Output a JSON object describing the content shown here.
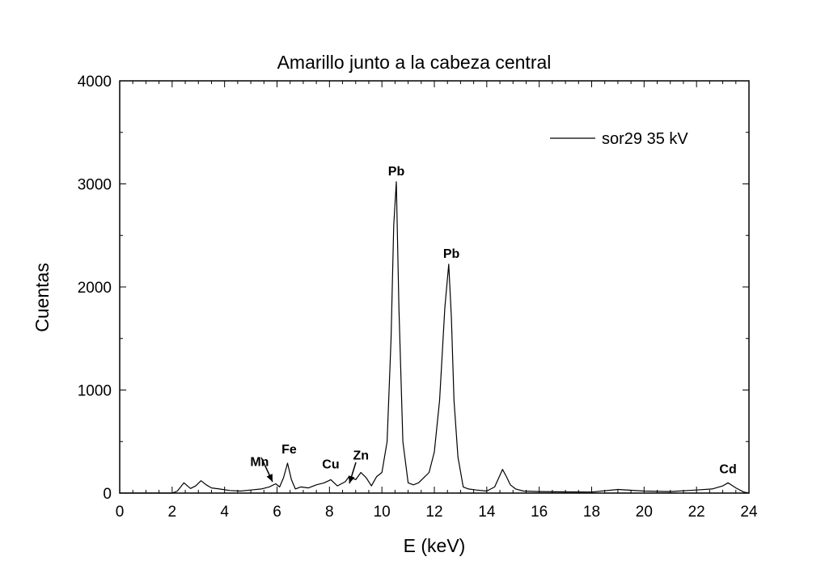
{
  "chart_data": {
    "type": "line",
    "title": "Amarillo junto a la cabeza central",
    "xlabel": "E (keV)",
    "ylabel": "Cuentas",
    "xlim": [
      0,
      24
    ],
    "ylim": [
      0,
      4000
    ],
    "x_ticks": [
      "0",
      "2",
      "4",
      "6",
      "8",
      "10",
      "12",
      "14",
      "16",
      "18",
      "20",
      "22",
      "24"
    ],
    "y_ticks": [
      "0",
      "1000",
      "2000",
      "3000",
      "4000"
    ],
    "legend": {
      "position": "top-right",
      "entries": [
        "sor29 35 kV"
      ]
    },
    "grid": false,
    "series": [
      {
        "name": "sor29 35 kV",
        "color": "#000000",
        "x": [
          0.0,
          2.0,
          2.2,
          2.45,
          2.7,
          2.9,
          3.1,
          3.3,
          3.5,
          3.8,
          4.2,
          4.6,
          5.0,
          5.4,
          5.7,
          5.95,
          6.1,
          6.25,
          6.4,
          6.55,
          6.7,
          6.9,
          7.2,
          7.5,
          7.8,
          8.05,
          8.3,
          8.6,
          8.75,
          9.0,
          9.2,
          9.4,
          9.6,
          9.8,
          10.0,
          10.2,
          10.35,
          10.45,
          10.55,
          10.65,
          10.8,
          11.0,
          11.2,
          11.4,
          11.6,
          11.8,
          12.0,
          12.2,
          12.4,
          12.55,
          12.65,
          12.75,
          12.9,
          13.1,
          13.3,
          13.6,
          14.0,
          14.3,
          14.6,
          14.75,
          14.9,
          15.1,
          15.4,
          16.0,
          17.0,
          18.0,
          19.0,
          20.0,
          21.0,
          22.0,
          22.6,
          23.0,
          23.2,
          23.5,
          23.8,
          24.0
        ],
        "y": [
          0,
          0,
          20,
          100,
          45,
          70,
          120,
          80,
          50,
          40,
          25,
          20,
          30,
          40,
          60,
          90,
          60,
          150,
          290,
          130,
          40,
          60,
          50,
          80,
          100,
          130,
          70,
          110,
          160,
          130,
          200,
          150,
          70,
          160,
          200,
          500,
          1500,
          2600,
          3020,
          1800,
          500,
          100,
          80,
          100,
          150,
          200,
          400,
          900,
          1800,
          2220,
          1700,
          900,
          350,
          60,
          40,
          30,
          20,
          60,
          230,
          160,
          80,
          40,
          20,
          15,
          12,
          10,
          35,
          20,
          15,
          30,
          40,
          70,
          100,
          50,
          10,
          0
        ]
      }
    ],
    "annotations": [
      {
        "text": "Pb",
        "x": 10.55,
        "y": 3020
      },
      {
        "text": "Pb",
        "x": 12.65,
        "y": 2220
      },
      {
        "text": "Fe",
        "x": 6.4,
        "y": 290
      },
      {
        "text": "Cu",
        "x": 8.05,
        "y": 130
      },
      {
        "text": "Zn",
        "x": 9.2,
        "y": 200
      },
      {
        "text": "Mn",
        "x": 5.95,
        "y": 90
      },
      {
        "text": "Cd",
        "x": 23.2,
        "y": 100
      }
    ]
  }
}
